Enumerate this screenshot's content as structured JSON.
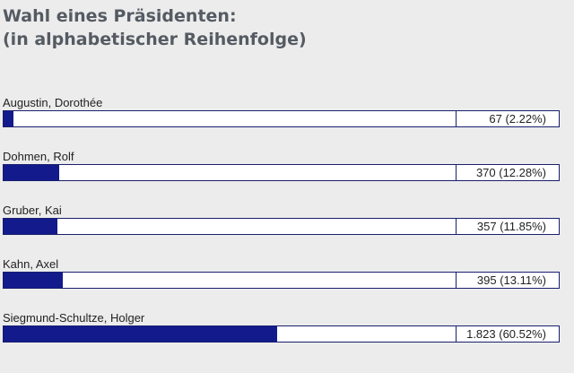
{
  "title": {
    "line1": "Wahl eines Präsidenten:",
    "line2": "(in alphabetischer Reihenfolge)"
  },
  "candidates": [
    {
      "name": "Augustin, Dorothée",
      "result": "67 (2.22%)",
      "share": 2.22
    },
    {
      "name": "Dohmen, Rolf",
      "result": "370 (12.28%)",
      "share": 12.28
    },
    {
      "name": "Gruber, Kai",
      "result": "357 (11.85%)",
      "share": 11.85
    },
    {
      "name": "Kahn, Axel",
      "result": "395 (13.11%)",
      "share": 13.11
    },
    {
      "name": "Siegmund-Schultze, Holger",
      "result": "1.823 (60.52%)",
      "share": 60.52
    }
  ],
  "colors": {
    "bar_fill": "#121a8c",
    "bar_border": "#1a1f6e",
    "title": "#555b63",
    "background": "#ececec"
  }
}
